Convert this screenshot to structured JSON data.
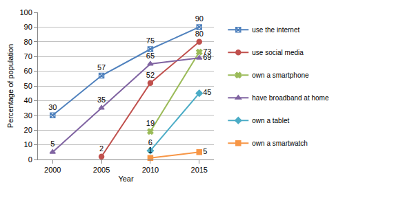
{
  "chart_data": {
    "type": "line",
    "x_label": "Year",
    "y_label": "Percentage of population",
    "categories": [
      "2000",
      "2005",
      "2010",
      "2015"
    ],
    "series": [
      {
        "name": "use the internet",
        "color": "#4f81bd",
        "marker": "square-x-open",
        "values": [
          30,
          57,
          75,
          90
        ]
      },
      {
        "name": "use social media",
        "color": "#c0504d",
        "marker": "circle",
        "values": [
          null,
          2,
          52,
          80
        ]
      },
      {
        "name": "own a smartphone",
        "color": "#9bbb59",
        "marker": "x",
        "values": [
          null,
          null,
          19,
          73
        ]
      },
      {
        "name": "have broadband at home",
        "color": "#8064a2",
        "marker": "triangle-up",
        "values": [
          5,
          35,
          65,
          69
        ]
      },
      {
        "name": "own a tablet",
        "color": "#4bacc6",
        "marker": "diamond",
        "values": [
          null,
          null,
          6,
          45
        ]
      },
      {
        "name": "own a smartwatch",
        "color": "#f79646",
        "marker": "square",
        "values": [
          null,
          null,
          1,
          5
        ]
      }
    ],
    "ylim": [
      0,
      100
    ],
    "yticks": [
      0,
      10,
      20,
      30,
      40,
      50,
      60,
      70,
      80,
      90,
      100
    ],
    "grid": true,
    "legend": "right",
    "data_labels": true
  }
}
